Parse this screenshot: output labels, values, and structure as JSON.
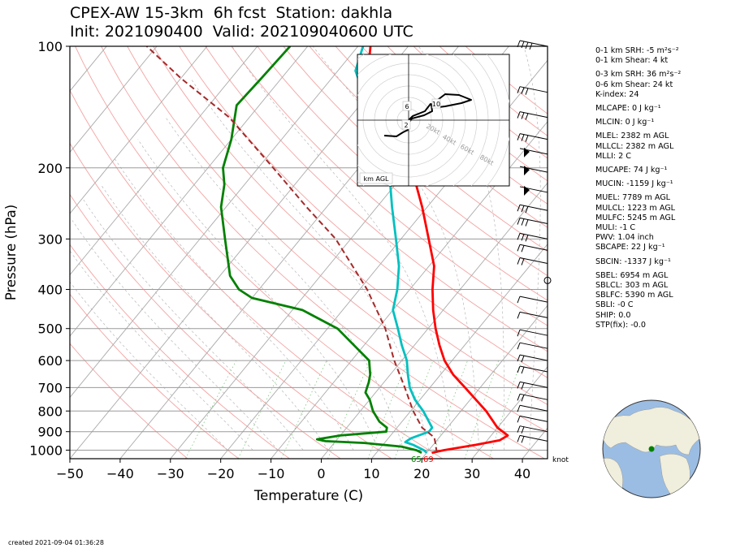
{
  "title": {
    "line1": "CPEX-AW 15-3km  6h fcst  Station: dakhla",
    "line2": "Init: 2021090400  Valid: 202109040600 UTC"
  },
  "footer": {
    "created": "created 2021-09-04 01:36:28"
  },
  "indices": [
    {
      "text": "0-1 km SRH: -5 m²s⁻²",
      "gap": false
    },
    {
      "text": "0-1 km Shear: 4 kt",
      "gap": false
    },
    {
      "text": "0-3 km SRH: 36 m²s⁻²",
      "gap": true
    },
    {
      "text": "0-6 km Shear: 24 kt",
      "gap": false
    },
    {
      "text": "K-index: 24",
      "gap": false
    },
    {
      "text": "MLCAPE: 0 J kg⁻¹",
      "gap": true
    },
    {
      "text": "MLCIN: 0 J kg⁻¹",
      "gap": true
    },
    {
      "text": "MLEL: 2382 m AGL",
      "gap": true
    },
    {
      "text": "MLLCL: 2382 m AGL",
      "gap": false
    },
    {
      "text": "MLLI: 2 C",
      "gap": false
    },
    {
      "text": "MUCAPE: 74 J kg⁻¹",
      "gap": true
    },
    {
      "text": "MUCIN: -1159 J kg⁻¹",
      "gap": true
    },
    {
      "text": "MUEL: 7789 m AGL",
      "gap": true
    },
    {
      "text": "MULCL: 1223 m AGL",
      "gap": false
    },
    {
      "text": "MULFC: 5245 m AGL",
      "gap": false
    },
    {
      "text": "MULI: -1 C",
      "gap": false
    },
    {
      "text": "PWV: 1.04 inch",
      "gap": false
    },
    {
      "text": "SBCAPE: 22 J kg⁻¹",
      "gap": false
    },
    {
      "text": "SBCIN: -1337 J kg⁻¹",
      "gap": true
    },
    {
      "text": "SBEL: 6954 m AGL",
      "gap": true
    },
    {
      "text": "SBLCL: 303 m AGL",
      "gap": false
    },
    {
      "text": "SBLFC: 5390 m AGL",
      "gap": false
    },
    {
      "text": "SBLI: -0 C",
      "gap": false
    },
    {
      "text": "SHIP: 0.0",
      "gap": false
    },
    {
      "text": "STP(fix): -0.0",
      "gap": false
    }
  ],
  "chart_data": {
    "type": "line",
    "subtype": "skew-t log-p",
    "xlabel": "Temperature (C)",
    "ylabel": "Pressure (hPa)",
    "xlim": [
      -50,
      45
    ],
    "ylim_hpa": [
      1050,
      100
    ],
    "y_scale": "log",
    "x_ticks": [
      -50,
      -40,
      -30,
      -20,
      -10,
      0,
      10,
      20,
      30,
      40
    ],
    "y_ticks": [
      100,
      200,
      300,
      400,
      500,
      600,
      700,
      800,
      900,
      1000
    ],
    "surface_labels": {
      "dewpoint": "65",
      "temperature": "69",
      "dewpoint_color": "#008000",
      "temperature_color": "#ff0000"
    },
    "series": [
      {
        "role": "temperature",
        "color": "#ff0000",
        "points": [
          [
            1015,
            21.0
          ],
          [
            1000,
            23.0
          ],
          [
            970,
            28.5
          ],
          [
            945,
            32.5
          ],
          [
            920,
            33.3
          ],
          [
            880,
            30.0
          ],
          [
            800,
            25.0
          ],
          [
            700,
            17.0
          ],
          [
            650,
            12.5
          ],
          [
            600,
            8.5
          ],
          [
            550,
            5.0
          ],
          [
            500,
            1.5
          ],
          [
            450,
            -2.0
          ],
          [
            400,
            -5.5
          ],
          [
            350,
            -9.0
          ],
          [
            300,
            -14.5
          ],
          [
            250,
            -21.0
          ],
          [
            200,
            -29.5
          ],
          [
            170,
            -36.0
          ],
          [
            150,
            -42.0
          ],
          [
            130,
            -48.5
          ],
          [
            115,
            -54.0
          ],
          [
            100,
            -57.5
          ]
        ]
      },
      {
        "role": "dewpoint",
        "color": "#008000",
        "points": [
          [
            1015,
            19.0
          ],
          [
            1000,
            17.5
          ],
          [
            980,
            14.0
          ],
          [
            960,
            6.0
          ],
          [
            950,
            -2.0
          ],
          [
            940,
            -4.0
          ],
          [
            920,
            0.0
          ],
          [
            900,
            8.5
          ],
          [
            880,
            8.0
          ],
          [
            850,
            5.5
          ],
          [
            800,
            2.5
          ],
          [
            750,
            0.0
          ],
          [
            720,
            -2.0
          ],
          [
            700,
            -2.5
          ],
          [
            680,
            -3.0
          ],
          [
            650,
            -4.0
          ],
          [
            600,
            -6.5
          ],
          [
            550,
            -12.0
          ],
          [
            500,
            -18.0
          ],
          [
            450,
            -28.0
          ],
          [
            420,
            -40.0
          ],
          [
            400,
            -44.0
          ],
          [
            370,
            -48.0
          ],
          [
            300,
            -55.0
          ],
          [
            250,
            -61.0
          ],
          [
            220,
            -64.0
          ],
          [
            200,
            -67.0
          ],
          [
            170,
            -70.0
          ],
          [
            140,
            -74.5
          ],
          [
            120,
            -74.0
          ],
          [
            100,
            -73.5
          ]
        ]
      },
      {
        "role": "virtual-temperature",
        "color": "#00c0c0",
        "points": [
          [
            1015,
            20.0
          ],
          [
            1000,
            19.0
          ],
          [
            970,
            16.0
          ],
          [
            955,
            14.0
          ],
          [
            935,
            14.5
          ],
          [
            900,
            17.0
          ],
          [
            880,
            17.0
          ],
          [
            800,
            12.5
          ],
          [
            750,
            9.0
          ],
          [
            700,
            6.0
          ],
          [
            650,
            3.5
          ],
          [
            600,
            1.0
          ],
          [
            550,
            -2.5
          ],
          [
            500,
            -6.0
          ],
          [
            450,
            -10.0
          ],
          [
            400,
            -12.5
          ],
          [
            350,
            -16.0
          ],
          [
            300,
            -21.0
          ],
          [
            250,
            -27.0
          ],
          [
            200,
            -34.0
          ],
          [
            170,
            -40.5
          ],
          [
            150,
            -45.5
          ],
          [
            130,
            -51.5
          ],
          [
            115,
            -56.5
          ],
          [
            100,
            -59.0
          ]
        ]
      },
      {
        "role": "parcel",
        "color": "#a52a2a",
        "dashed": true,
        "points": [
          [
            1015,
            22.0
          ],
          [
            970,
            20.5
          ],
          [
            930,
            19.0
          ],
          [
            880,
            15.0
          ],
          [
            800,
            10.5
          ],
          [
            700,
            5.0
          ],
          [
            600,
            -1.5
          ],
          [
            500,
            -8.5
          ],
          [
            400,
            -18.5
          ],
          [
            300,
            -33.0
          ],
          [
            250,
            -44.0
          ],
          [
            200,
            -57.0
          ],
          [
            150,
            -74.0
          ],
          [
            120,
            -90.0
          ],
          [
            100,
            -102.0
          ]
        ]
      }
    ],
    "wind_barbs": {
      "units": "knot"
    },
    "hodograph": {
      "rings": [
        "20kt",
        "40kt",
        "60kt",
        "80kt"
      ],
      "height_labels": [
        "2",
        "6",
        "10"
      ],
      "legend": "km AGL"
    },
    "location_map": {
      "station_marker_color": "#008000"
    }
  }
}
